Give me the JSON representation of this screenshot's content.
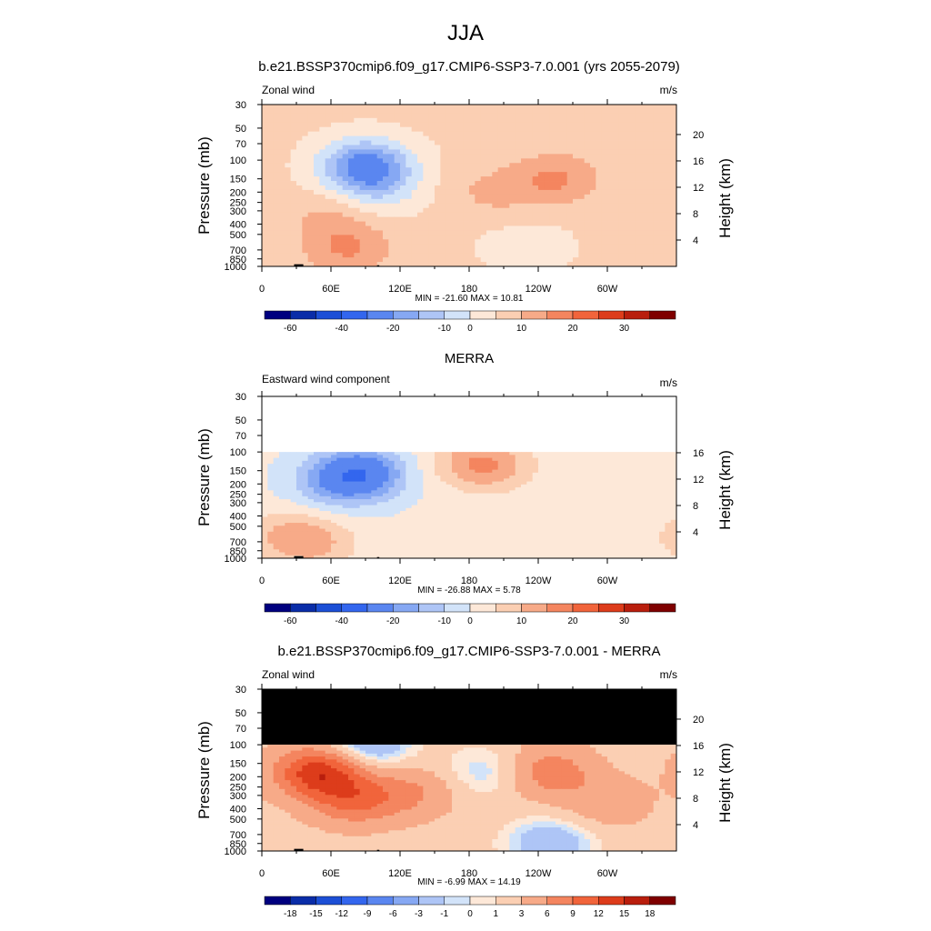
{
  "page_title": "JJA",
  "chart_data": [
    {
      "type": "heatmap",
      "title": "b.e21.BSSP370cmip6.f09_g17.CMIP6-SSP3-7.0.001 (yrs 2055-2079)",
      "left_label": "Zonal wind",
      "units": "m/s",
      "ylabel": "Pressure (mb)",
      "ylabel_right": "Height (km)",
      "pressure_ticks": [
        "30",
        "50",
        "70",
        "100",
        "150",
        "200",
        "250",
        "300",
        "400",
        "500",
        "700",
        "850",
        "1000"
      ],
      "height_ticks": [
        "4",
        "8",
        "12",
        "16",
        "20"
      ],
      "x_ticks": [
        "0",
        "60E",
        "120E",
        "180",
        "120W",
        "60W"
      ],
      "stats": "MIN = -21.60  MAX =  10.81",
      "min": -21.6,
      "max": 10.81,
      "data_top_mb": 30,
      "background_value": 1,
      "colorbar": {
        "tick_labels": [
          "-60",
          "-40",
          "-20",
          "-10",
          "0",
          "10",
          "20",
          "30"
        ],
        "colors": [
          "#00007f",
          "#0a2da8",
          "#1c4fd6",
          "#3366ee",
          "#5a86f0",
          "#86a8f3",
          "#aec5f6",
          "#d2e3f9",
          "#fde8d8",
          "#fbcfb3",
          "#f7aa88",
          "#f4855f",
          "#f1643b",
          "#dd3c1b",
          "#b91e0d",
          "#7f0000"
        ]
      },
      "features": [
        {
          "lon": 90,
          "p": 110,
          "value": -21.6,
          "note": "upper-level easterly core"
        },
        {
          "lon": 100,
          "p": 180,
          "value": -8
        },
        {
          "lon": 60,
          "p": 350,
          "value": 6
        },
        {
          "lon": 75,
          "p": 700,
          "value": 10
        },
        {
          "lon": 255,
          "p": 150,
          "value": 10.8
        },
        {
          "lon": 200,
          "p": 200,
          "value": 6
        },
        {
          "lon": 230,
          "p": 650,
          "value": -3
        }
      ]
    },
    {
      "type": "heatmap",
      "title": "MERRA",
      "left_label": "Eastward wind component",
      "units": "m/s",
      "ylabel": "Pressure (mb)",
      "ylabel_right": "Height (km)",
      "pressure_ticks": [
        "30",
        "50",
        "70",
        "100",
        "150",
        "200",
        "250",
        "300",
        "400",
        "500",
        "700",
        "850",
        "1000"
      ],
      "height_ticks": [
        "4",
        "8",
        "12",
        "16"
      ],
      "x_ticks": [
        "0",
        "60E",
        "120E",
        "180",
        "120W",
        "60W"
      ],
      "stats": "MIN = -26.88  MAX =   5.78",
      "min": -26.88,
      "max": 5.78,
      "data_top_mb": 100,
      "background_value": -4,
      "colorbar": {
        "tick_labels": [
          "-60",
          "-40",
          "-20",
          "-10",
          "0",
          "10",
          "20",
          "30"
        ],
        "colors": [
          "#00007f",
          "#0a2da8",
          "#1c4fd6",
          "#3366ee",
          "#5a86f0",
          "#86a8f3",
          "#aec5f6",
          "#d2e3f9",
          "#fde8d8",
          "#fbcfb3",
          "#f7aa88",
          "#f4855f",
          "#f1643b",
          "#dd3c1b",
          "#b91e0d",
          "#7f0000"
        ]
      },
      "features": [
        {
          "lon": 85,
          "p": 160,
          "value": -26.9,
          "note": "upper-level easterly core"
        },
        {
          "lon": 60,
          "p": 200,
          "value": -12
        },
        {
          "lon": 180,
          "p": 120,
          "value": 3
        },
        {
          "lon": 200,
          "p": 140,
          "value": 5.8
        },
        {
          "lon": 45,
          "p": 720,
          "value": 5
        },
        {
          "lon": 20,
          "p": 600,
          "value": 3
        }
      ]
    },
    {
      "type": "heatmap",
      "title": "b.e21.BSSP370cmip6.f09_g17.CMIP6-SSP3-7.0.001 - MERRA",
      "left_label": "Zonal wind",
      "units": "m/s",
      "ylabel": "Pressure (mb)",
      "ylabel_right": "Height (km)",
      "pressure_ticks": [
        "30",
        "50",
        "70",
        "100",
        "150",
        "200",
        "250",
        "300",
        "400",
        "500",
        "700",
        "850",
        "1000"
      ],
      "height_ticks": [
        "4",
        "8",
        "12",
        "16",
        "20"
      ],
      "x_ticks": [
        "0",
        "60E",
        "120E",
        "180",
        "120W",
        "60W"
      ],
      "stats": "MIN = -6.99  MAX = 14.19",
      "min": -6.99,
      "max": 14.19,
      "data_top_mb": 100,
      "background_value": 2,
      "colorbar": {
        "tick_labels": [
          "-18",
          "-15",
          "-12",
          "-9",
          "-6",
          "-3",
          "-1",
          "0",
          "1",
          "3",
          "6",
          "9",
          "12",
          "15",
          "18"
        ],
        "colors": [
          "#00007f",
          "#0a2da8",
          "#1c4fd6",
          "#3366ee",
          "#5a86f0",
          "#86a8f3",
          "#aec5f6",
          "#d2e3f9",
          "#fde8d8",
          "#fbcfb3",
          "#f7aa88",
          "#f4855f",
          "#f1643b",
          "#dd3c1b",
          "#b91e0d",
          "#7f0000"
        ]
      },
      "features": [
        {
          "lon": 50,
          "p": 180,
          "value": 14.2
        },
        {
          "lon": 80,
          "p": 330,
          "value": 9
        },
        {
          "lon": 130,
          "p": 280,
          "value": 6
        },
        {
          "lon": 250,
          "p": 180,
          "value": 8
        },
        {
          "lon": 195,
          "p": 180,
          "value": -1
        },
        {
          "lon": 90,
          "p": 102,
          "value": -4
        },
        {
          "lon": 250,
          "p": 860,
          "value": -3
        },
        {
          "lon": 300,
          "p": 350,
          "value": 5
        }
      ]
    }
  ]
}
